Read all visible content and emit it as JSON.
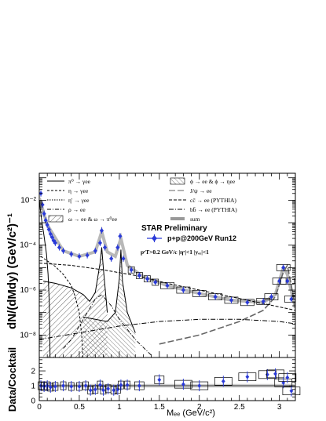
{
  "chart_data": [
    {
      "type": "line",
      "ylabel": "dN/(dMdy) (GeV/c²)⁻¹",
      "xlim": [
        0,
        3.2
      ],
      "ylim_log10": [
        -9,
        -0.8
      ],
      "ytick_labels": [
        "10⁻⁸",
        "10⁻⁶",
        "10⁻⁴",
        "10⁻²"
      ],
      "ytick_values": [
        -8,
        -6,
        -4,
        -2
      ],
      "annotations": {
        "preliminary": "STAR Preliminary",
        "dataset": "p+p@200GeV Run12",
        "cuts": "pᵉT>0.2 GeV/c  |ηᵉ|<1  |yₑₑ|<1"
      },
      "legend": [
        {
          "label": "π⁰ → γee",
          "style": "solid"
        },
        {
          "label": "η → γee",
          "style": "dashed"
        },
        {
          "label": "η' → γee",
          "style": "thin-dash"
        },
        {
          "label": "ρ → ee",
          "style": "dashdot"
        },
        {
          "label": "ω → ee & ω → π⁰ee",
          "style": "hatch"
        },
        {
          "label": "ϕ → ee & ϕ → ηee",
          "style": "hatch-dense"
        },
        {
          "label": "J/ψ → ee",
          "style": "long-dash"
        },
        {
          "label": "cc̄ → ee (PYTHIA)",
          "style": "short-dash"
        },
        {
          "label": "bb̄ → ee (PYTHIA)",
          "style": "dashdot2"
        },
        {
          "label": "sum",
          "style": "grey-band"
        }
      ],
      "series": [
        {
          "name": "p+p@200GeV Run12",
          "x": [
            0.02,
            0.04,
            0.06,
            0.08,
            0.1,
            0.12,
            0.14,
            0.16,
            0.18,
            0.2,
            0.25,
            0.3,
            0.4,
            0.5,
            0.6,
            0.7,
            0.76,
            0.78,
            0.82,
            0.9,
            0.98,
            1.01,
            1.05,
            1.15,
            1.25,
            1.35,
            1.45,
            1.6,
            1.8,
            2.0,
            2.2,
            2.4,
            2.6,
            2.8,
            2.9,
            3.0,
            3.05,
            3.1,
            3.15
          ],
          "log10y": [
            -1.7,
            -2.2,
            -2.6,
            -2.9,
            -3.1,
            -3.3,
            -3.5,
            -3.65,
            -3.8,
            -3.9,
            -4.1,
            -4.25,
            -4.4,
            -4.5,
            -4.45,
            -4.25,
            -3.9,
            -3.35,
            -4.1,
            -4.6,
            -4.1,
            -3.6,
            -4.6,
            -5.1,
            -5.35,
            -5.5,
            -5.65,
            -5.8,
            -6.0,
            -6.15,
            -6.3,
            -6.45,
            -6.55,
            -6.5,
            -6.3,
            -5.6,
            -5.0,
            -5.6,
            -6.4
          ]
        },
        {
          "name": "sum",
          "x": [
            0,
            0.1,
            0.3,
            0.5,
            0.7,
            0.78,
            0.85,
            0.95,
            1.02,
            1.1,
            1.3,
            1.6,
            2.0,
            2.4,
            2.8,
            2.95,
            3.05,
            3.1,
            3.2
          ],
          "log10y": [
            -1.9,
            -3.1,
            -4.25,
            -4.5,
            -4.3,
            -3.4,
            -4.3,
            -4.5,
            -3.7,
            -4.9,
            -5.4,
            -5.8,
            -6.15,
            -6.45,
            -6.55,
            -6.2,
            -5.0,
            -5.3,
            -6.8
          ]
        },
        {
          "name": "π⁰ → γee",
          "x": [
            0,
            0.03,
            0.06,
            0.09,
            0.11,
            0.125,
            0.13,
            0.134
          ],
          "log10y": [
            -2.0,
            -2.9,
            -3.6,
            -4.4,
            -5.3,
            -6.5,
            -7.5,
            -9
          ]
        },
        {
          "name": "η → γee",
          "x": [
            0.02,
            0.1,
            0.2,
            0.3,
            0.4,
            0.45,
            0.5,
            0.53,
            0.545
          ],
          "log10y": [
            -4.5,
            -4.7,
            -4.95,
            -5.3,
            -5.8,
            -6.3,
            -7.0,
            -8.0,
            -9
          ]
        },
        {
          "name": "ω → ee & ω → π⁰ee",
          "x": [
            0.05,
            0.2,
            0.4,
            0.55,
            0.63,
            0.7,
            0.76,
            0.78,
            0.8,
            0.85
          ],
          "log10y": [
            -5.6,
            -5.7,
            -5.9,
            -6.2,
            -6.5,
            -6.1,
            -4.8,
            -4.1,
            -5.0,
            -7.0
          ]
        },
        {
          "name": "ϕ → ee & ϕ → ηee",
          "x": [
            0.55,
            0.7,
            0.85,
            0.95,
            1.0,
            1.02,
            1.04,
            1.1,
            1.2
          ],
          "log10y": [
            -7.2,
            -7.3,
            -7.4,
            -7.0,
            -5.5,
            -4.2,
            -5.6,
            -7.0,
            -7.9
          ]
        },
        {
          "name": "J/ψ → ee",
          "x": [
            1.5,
            2.0,
            2.5,
            2.8,
            2.95,
            3.05,
            3.1,
            3.15,
            3.2
          ],
          "log10y": [
            -8.4,
            -8.0,
            -7.4,
            -6.9,
            -6.3,
            -5.2,
            -4.9,
            -5.8,
            -6.9
          ]
        },
        {
          "name": "cc̄ → ee (PYTHIA)",
          "x": [
            0,
            0.4,
            0.8,
            1.2,
            1.6,
            2.0,
            2.4,
            2.8,
            3.2
          ],
          "log10y": [
            -4.8,
            -4.9,
            -5.1,
            -5.35,
            -5.7,
            -6.0,
            -6.3,
            -6.6,
            -6.9
          ]
        },
        {
          "name": "bb̄ → ee (PYTHIA)",
          "x": [
            0,
            0.5,
            1.0,
            1.5,
            2.0,
            2.5,
            3.0,
            3.2
          ],
          "log10y": [
            -8.2,
            -7.9,
            -7.6,
            -7.4,
            -7.3,
            -7.3,
            -7.4,
            -7.5
          ]
        },
        {
          "name": "ρ → ee",
          "x": [
            0.3,
            0.4,
            0.5,
            0.6,
            0.7,
            0.78,
            0.9,
            1.0,
            1.2,
            1.4
          ],
          "log10y": [
            -8.6,
            -8.2,
            -7.6,
            -7.0,
            -6.4,
            -6.2,
            -6.7,
            -7.3,
            -8.2,
            -8.9
          ]
        }
      ]
    },
    {
      "type": "scatter",
      "ylabel": "Data/Cocktail",
      "xlabel": "Mₑₑ (GeV/c²)",
      "xlim": [
        0,
        3.2
      ],
      "ylim": [
        0,
        2.9
      ],
      "xtick_labels": [
        "0",
        "0.5",
        "1",
        "1.5",
        "2",
        "2.5",
        "3"
      ],
      "xtick_values": [
        0,
        0.5,
        1,
        1.5,
        2,
        2.5,
        3
      ],
      "ytick_labels": [
        "0",
        "1",
        "2"
      ],
      "ytick_values": [
        0,
        1,
        2
      ],
      "x": [
        0.02,
        0.06,
        0.1,
        0.14,
        0.2,
        0.3,
        0.4,
        0.5,
        0.58,
        0.64,
        0.7,
        0.76,
        0.8,
        0.86,
        0.93,
        0.98,
        1.02,
        1.1,
        1.25,
        1.5,
        1.8,
        2.0,
        2.3,
        2.6,
        2.85,
        2.95,
        3.05,
        3.1,
        3.15
      ],
      "y": [
        1.0,
        0.95,
        1.0,
        0.9,
        0.95,
        1.0,
        0.95,
        0.95,
        1.0,
        0.7,
        0.75,
        1.05,
        0.7,
        0.8,
        0.7,
        0.75,
        1.05,
        1.05,
        1.0,
        1.4,
        1.1,
        1.0,
        1.3,
        1.6,
        1.75,
        1.8,
        1.2,
        1.55,
        0.65
      ]
    }
  ]
}
